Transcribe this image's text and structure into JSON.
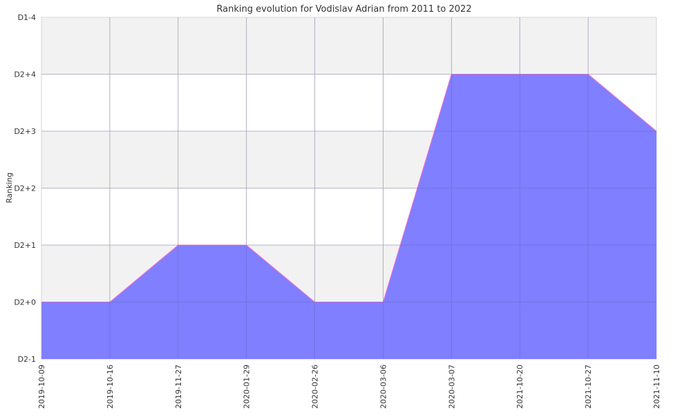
{
  "chart_data": {
    "type": "area",
    "title": "Ranking evolution for Vodislav Adrian from 2011 to 2022",
    "xlabel": "",
    "ylabel": "Ranking",
    "categories": [
      "2019-10-09",
      "2019-10-16",
      "2019-11-27",
      "2020-01-29",
      "2020-02-26",
      "2020-03-06",
      "2020-03-07",
      "2021-10-20",
      "2021-10-27",
      "2021-11-10"
    ],
    "y_ticks": [
      "D2-1",
      "D2+0",
      "D2+1",
      "D2+2",
      "D2+3",
      "D2+4",
      "D1-4"
    ],
    "series": [
      {
        "values": [
          "D2+0",
          "D2+0",
          "D2+1",
          "D2+1",
          "D2+0",
          "D2+0",
          "D2+4",
          "D2+4",
          "D2+4",
          "D2+3"
        ]
      }
    ],
    "grid": true,
    "colors": {
      "fill": "#7f7fff",
      "line": "#ff6fcf",
      "band": "#f2f2f2",
      "grid": "#cccccc"
    }
  }
}
